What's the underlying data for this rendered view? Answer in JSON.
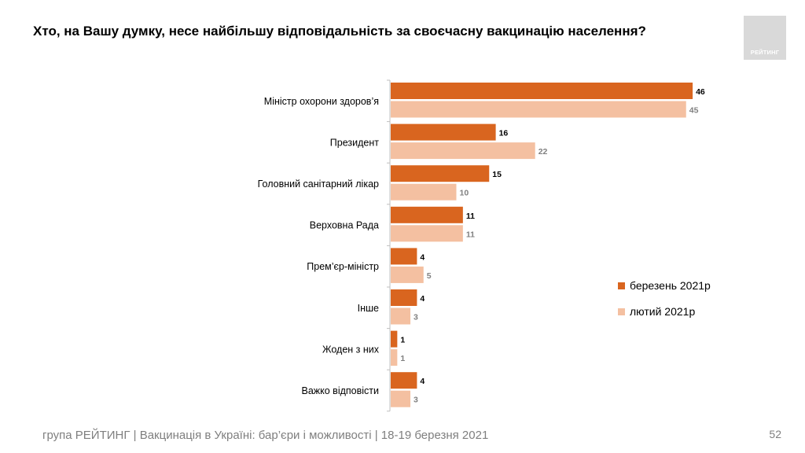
{
  "title": "Хто, на Вашу думку, несе найбільшу відповідальність за своєчасну вакцинацію населення?",
  "logo_text": "РЕЙТИНГ",
  "footer": "група РЕЙТИНГ | Вакцинація в Україні: бар’єри і можливості | 18-19 березня 2021",
  "page_number": "52",
  "colors": {
    "series1": "#d9651f",
    "series2": "#f4c0a1",
    "label2": "#808080"
  },
  "chart_data": {
    "type": "bar",
    "orientation": "horizontal",
    "categories": [
      "Міністр охорони здоров’я",
      "Президент",
      "Головний санітарний лікар",
      "Верховна Рада",
      "Прем’єр-міністр",
      "Інше",
      "Жоден з них",
      "Важко відповісти"
    ],
    "series": [
      {
        "name": "березень 2021р",
        "values": [
          46,
          16,
          15,
          11,
          4,
          4,
          1,
          4
        ]
      },
      {
        "name": "лютий 2021р",
        "values": [
          45,
          22,
          10,
          11,
          5,
          3,
          1,
          3
        ]
      }
    ],
    "legend_position": "right",
    "grid": false
  }
}
